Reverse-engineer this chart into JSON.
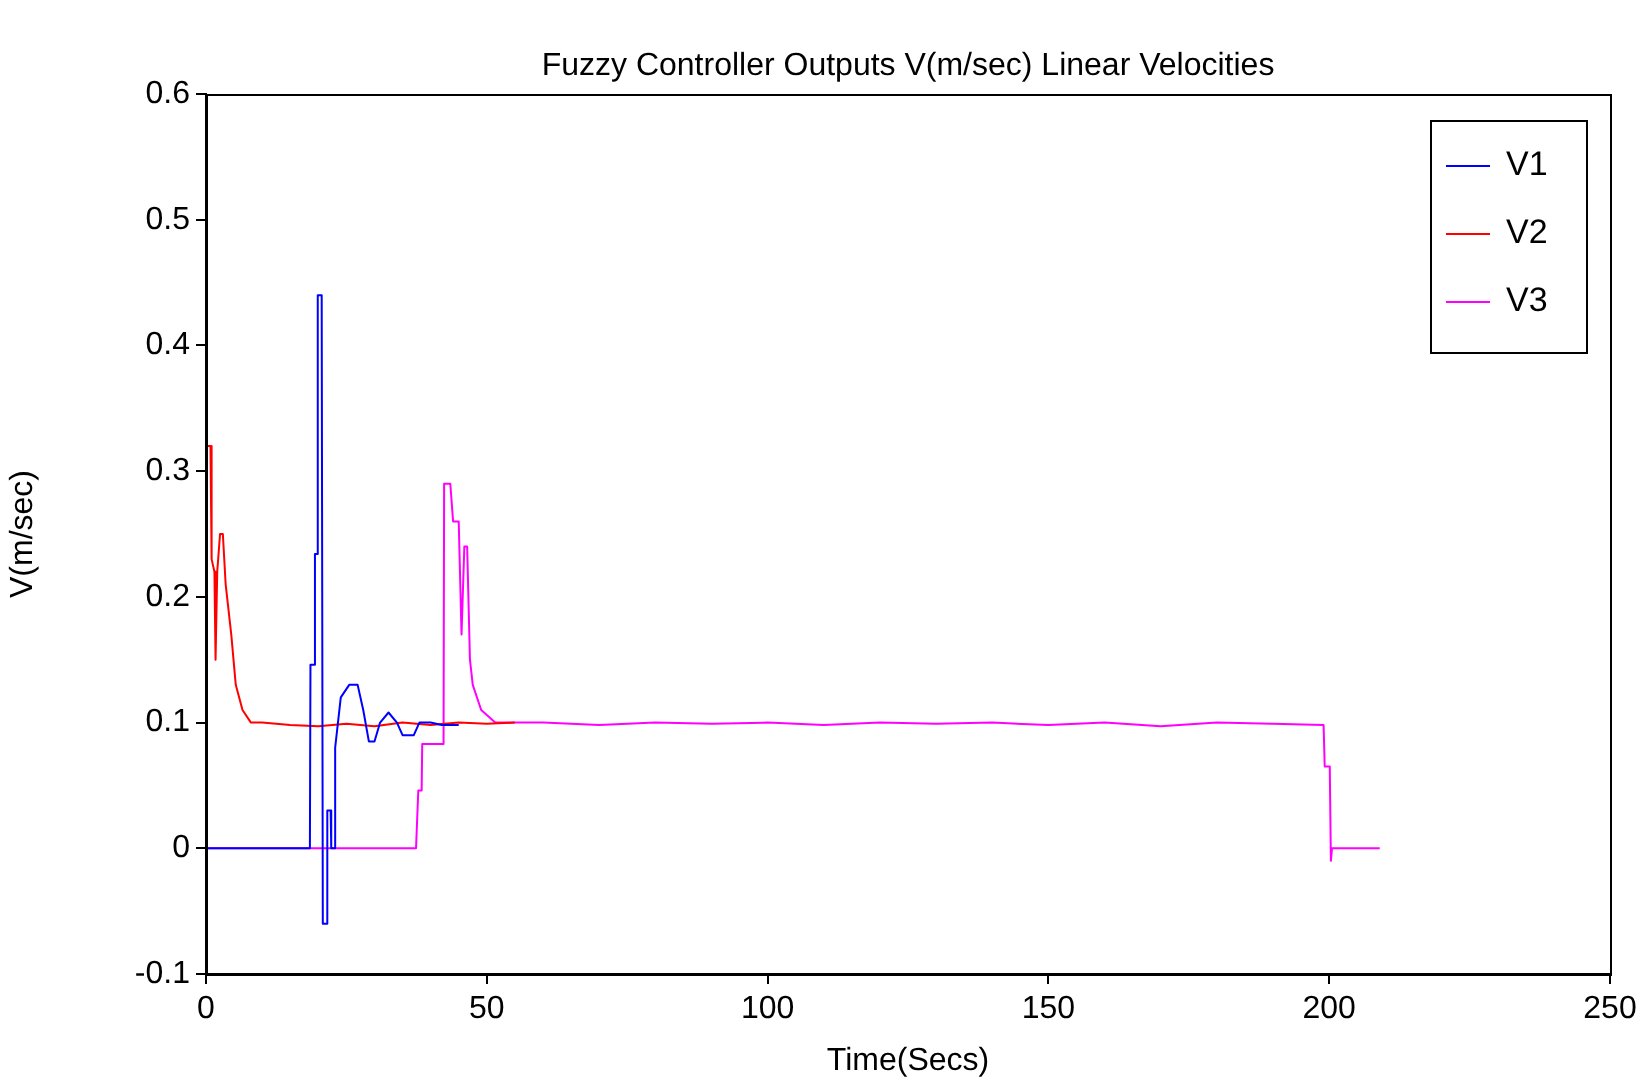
{
  "chart_data": {
    "type": "line",
    "title": "Fuzzy Controller Outputs V(m/sec) Linear Velocities",
    "xlabel": "Time(Secs)",
    "ylabel": "V(m/sec)",
    "xlim": [
      0,
      250
    ],
    "xticks": [
      0,
      50,
      100,
      150,
      200,
      250
    ],
    "ylim": [
      -0.1,
      0.6
    ],
    "yticks": [
      -0.1,
      0,
      0.1,
      0.2,
      0.3,
      0.4,
      0.5,
      0.6
    ],
    "legend": "top right",
    "series": [
      {
        "name": "V1",
        "color": "#0000ff",
        "x": [
          0,
          18.5,
          18.6,
          19.3,
          19.4,
          19.8,
          19.9,
          20.6,
          20.8,
          21.5,
          21.6,
          22.2,
          22.3,
          22.8,
          23,
          24,
          25.5,
          27,
          28,
          29,
          30,
          31,
          32.5,
          34,
          35,
          37,
          38,
          40,
          42,
          45
        ],
        "values": [
          0,
          0,
          0.146,
          0.146,
          0.234,
          0.234,
          0.44,
          0.44,
          -0.06,
          -0.06,
          0.03,
          0.03,
          0,
          0,
          0.08,
          0.12,
          0.13,
          0.13,
          0.11,
          0.085,
          0.085,
          0.1,
          0.108,
          0.1,
          0.09,
          0.09,
          0.1,
          0.1,
          0.098,
          0.098
        ]
      },
      {
        "name": "V2",
        "color": "#ff0000",
        "x": [
          0,
          0.1,
          0.8,
          1,
          1.5,
          1.7,
          2,
          2.5,
          3,
          3.5,
          4.5,
          5.3,
          6.5,
          8,
          10,
          15,
          20,
          25,
          30,
          35,
          40,
          45,
          50,
          55
        ],
        "values": [
          0,
          0.32,
          0.32,
          0.23,
          0.22,
          0.15,
          0.22,
          0.25,
          0.25,
          0.21,
          0.17,
          0.13,
          0.11,
          0.1,
          0.1,
          0.098,
          0.097,
          0.099,
          0.097,
          0.1,
          0.098,
          0.1,
          0.099,
          0.1
        ]
      },
      {
        "name": "V3",
        "color": "#ff00ff",
        "x": [
          0,
          37.4,
          37.8,
          38.4,
          38.5,
          42.3,
          42.4,
          43.5,
          44,
          45,
          45.5,
          46,
          46.5,
          47,
          47.5,
          49,
          51.5,
          60,
          70,
          80,
          90,
          100,
          110,
          120,
          130,
          140,
          150,
          160,
          170,
          180,
          190,
          199,
          199.2,
          200.1,
          200.3,
          200.5,
          209
        ],
        "values": [
          0,
          0,
          0.046,
          0.046,
          0.083,
          0.083,
          0.29,
          0.29,
          0.26,
          0.26,
          0.17,
          0.24,
          0.24,
          0.15,
          0.13,
          0.11,
          0.1,
          0.1,
          0.098,
          0.1,
          0.099,
          0.1,
          0.098,
          0.1,
          0.099,
          0.1,
          0.098,
          0.1,
          0.097,
          0.1,
          0.099,
          0.098,
          0.065,
          0.065,
          -0.01,
          0,
          0
        ]
      }
    ]
  }
}
